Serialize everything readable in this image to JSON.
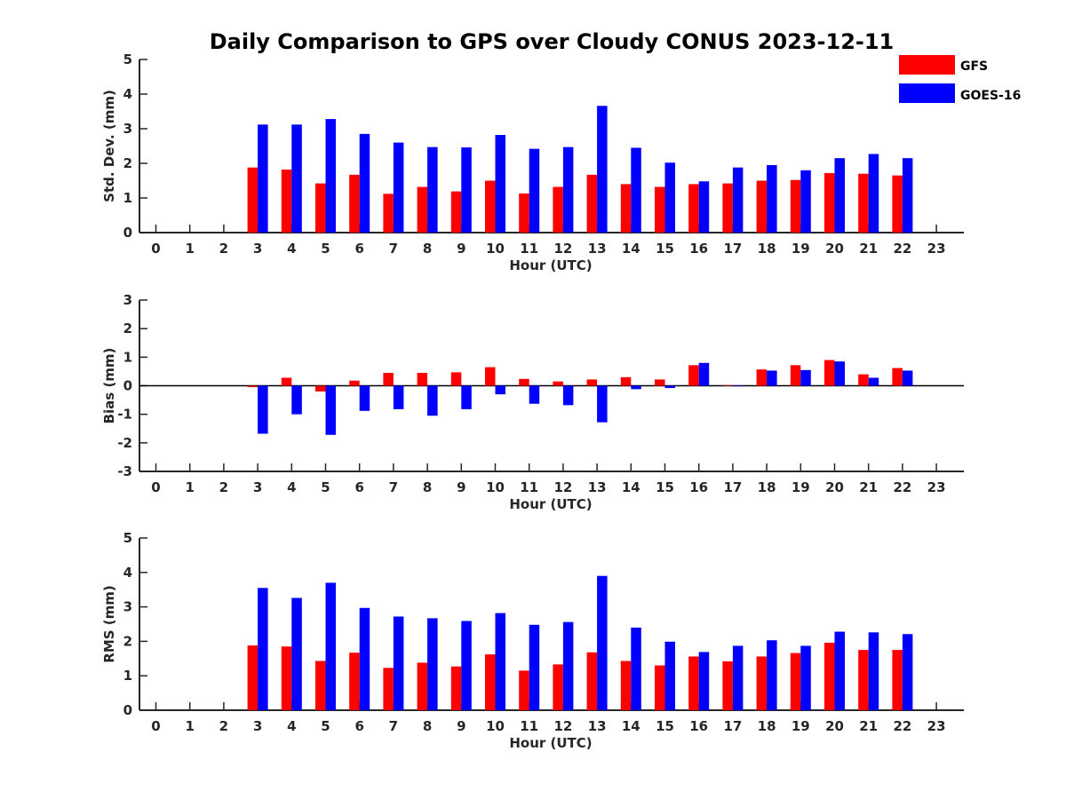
{
  "colors": {
    "gfs": "#ff0000",
    "goes": "#0000ff",
    "axis": "#262626"
  },
  "chart_data": [
    {
      "type": "bar",
      "title": "Daily Comparison to GPS over Cloudy CONUS 2023-12-11",
      "xlabel": "Hour (UTC)",
      "ylabel": "Std. Dev. (mm)",
      "ylim": [
        0,
        5
      ],
      "yticks": [
        "0",
        "1",
        "2",
        "3",
        "4",
        "5"
      ],
      "categories": [
        "0",
        "1",
        "2",
        "3",
        "4",
        "5",
        "6",
        "7",
        "8",
        "9",
        "10",
        "11",
        "12",
        "13",
        "14",
        "15",
        "16",
        "17",
        "18",
        "19",
        "20",
        "21",
        "22",
        "23"
      ],
      "legend": {
        "placement": "top-right",
        "entries": [
          "GFS",
          "GOES-16"
        ]
      },
      "series": [
        {
          "name": "GFS",
          "values": [
            null,
            null,
            null,
            1.88,
            1.82,
            1.42,
            1.67,
            1.12,
            1.32,
            1.19,
            1.5,
            1.13,
            1.32,
            1.67,
            1.4,
            1.32,
            1.4,
            1.42,
            1.5,
            1.52,
            1.72,
            1.7,
            1.65,
            null
          ]
        },
        {
          "name": "GOES-16",
          "values": [
            null,
            null,
            null,
            3.12,
            3.12,
            3.28,
            2.85,
            2.6,
            2.47,
            2.46,
            2.82,
            2.42,
            2.47,
            3.66,
            2.45,
            2.02,
            1.48,
            1.88,
            1.95,
            1.8,
            2.15,
            2.27,
            2.15,
            null
          ]
        }
      ]
    },
    {
      "type": "bar",
      "title": "",
      "xlabel": "Hour (UTC)",
      "ylabel": "Bias (mm)",
      "ylim": [
        -3,
        3
      ],
      "yticks": [
        "-3",
        "-2",
        "-1",
        "0",
        "1",
        "2",
        "3"
      ],
      "categories": [
        "0",
        "1",
        "2",
        "3",
        "4",
        "5",
        "6",
        "7",
        "8",
        "9",
        "10",
        "11",
        "12",
        "13",
        "14",
        "15",
        "16",
        "17",
        "18",
        "19",
        "20",
        "21",
        "22",
        "23"
      ],
      "series": [
        {
          "name": "GFS",
          "values": [
            null,
            null,
            null,
            -0.05,
            0.28,
            -0.2,
            0.18,
            0.45,
            0.45,
            0.47,
            0.65,
            0.24,
            0.15,
            0.22,
            0.3,
            0.22,
            0.72,
            0.02,
            0.57,
            0.72,
            0.9,
            0.4,
            0.62,
            null
          ]
        },
        {
          "name": "GOES-16",
          "values": [
            null,
            null,
            null,
            -1.68,
            -1.0,
            -1.72,
            -0.88,
            -0.82,
            -1.05,
            -0.82,
            -0.3,
            -0.63,
            -0.68,
            -1.28,
            -0.12,
            -0.08,
            0.8,
            0.0,
            0.53,
            0.55,
            0.85,
            0.28,
            0.53,
            null
          ]
        }
      ]
    },
    {
      "type": "bar",
      "title": "",
      "xlabel": "Hour (UTC)",
      "ylabel": "RMS (mm)",
      "ylim": [
        0,
        5
      ],
      "yticks": [
        "0",
        "1",
        "2",
        "3",
        "4",
        "5"
      ],
      "categories": [
        "0",
        "1",
        "2",
        "3",
        "4",
        "5",
        "6",
        "7",
        "8",
        "9",
        "10",
        "11",
        "12",
        "13",
        "14",
        "15",
        "16",
        "17",
        "18",
        "19",
        "20",
        "21",
        "22",
        "23"
      ],
      "series": [
        {
          "name": "GFS",
          "values": [
            null,
            null,
            null,
            1.88,
            1.85,
            1.43,
            1.67,
            1.23,
            1.38,
            1.27,
            1.62,
            1.15,
            1.33,
            1.68,
            1.43,
            1.3,
            1.56,
            1.42,
            1.56,
            1.66,
            1.96,
            1.75,
            1.75,
            null
          ]
        },
        {
          "name": "GOES-16",
          "values": [
            null,
            null,
            null,
            3.55,
            3.26,
            3.7,
            2.97,
            2.72,
            2.67,
            2.59,
            2.82,
            2.48,
            2.56,
            3.9,
            2.4,
            1.99,
            1.69,
            1.87,
            2.03,
            1.87,
            2.28,
            2.26,
            2.21,
            null
          ]
        }
      ]
    }
  ]
}
